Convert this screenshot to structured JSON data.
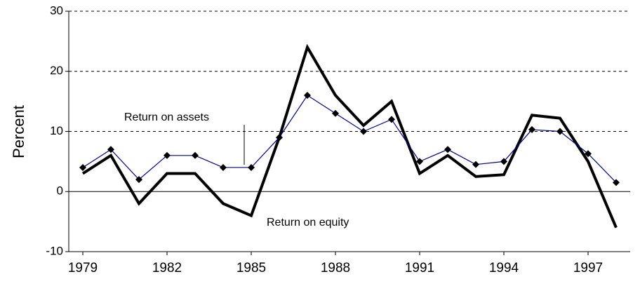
{
  "chart_data": {
    "type": "line",
    "y_label": "Percent",
    "x": [
      1979,
      1980,
      1981,
      1982,
      1983,
      1984,
      1985,
      1986,
      1987,
      1988,
      1989,
      1990,
      1991,
      1992,
      1993,
      1994,
      1995,
      1996,
      1997,
      1998
    ],
    "series": [
      {
        "name": "Return on assets",
        "color": "#000080",
        "marker": "diamond",
        "values": [
          4,
          7,
          2,
          6,
          6,
          4,
          4,
          9,
          16,
          13,
          10,
          12,
          5,
          7,
          4.5,
          5,
          10.3,
          10,
          6.3,
          1.5
        ]
      },
      {
        "name": "Return on equity",
        "color": "#000000",
        "values": [
          3,
          6,
          -2,
          3,
          3,
          -2,
          -4,
          9,
          24,
          16,
          11,
          15,
          3,
          6,
          2.5,
          2.8,
          12.7,
          12.2,
          5,
          -6
        ]
      }
    ],
    "xlim": [
      1978.5,
      1998.5
    ],
    "xticks": [
      1979,
      1982,
      1985,
      1988,
      1991,
      1994,
      1997
    ],
    "ylim": [
      -10,
      30
    ],
    "yticks": [
      -10,
      0,
      10,
      20,
      30
    ],
    "grid": true
  }
}
